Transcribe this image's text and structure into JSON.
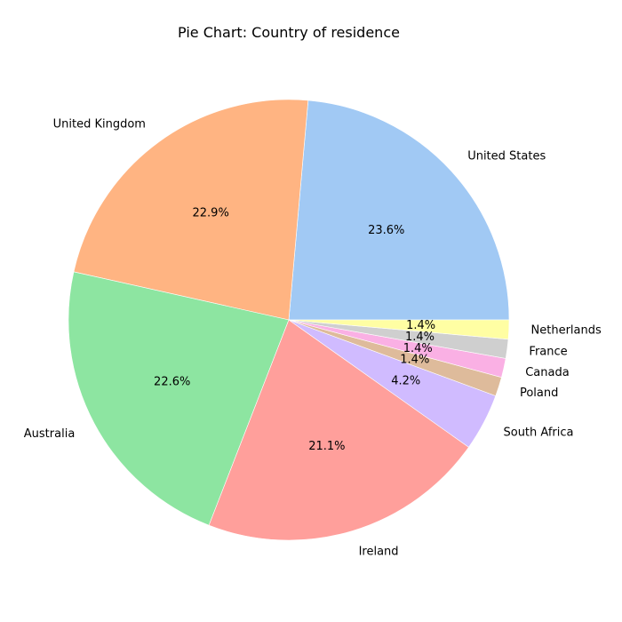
{
  "chart_data": {
    "type": "pie",
    "title": "Pie Chart: Country of residence",
    "slices": [
      {
        "label": "United States",
        "percent": 23.6,
        "percent_label": "23.6%",
        "color": "#a1c9f4"
      },
      {
        "label": "United Kingdom",
        "percent": 22.9,
        "percent_label": "22.9%",
        "color": "#ffb482"
      },
      {
        "label": "Australia",
        "percent": 22.6,
        "percent_label": "22.6%",
        "color": "#8de5a1"
      },
      {
        "label": "Ireland",
        "percent": 21.1,
        "percent_label": "21.1%",
        "color": "#ff9f9b"
      },
      {
        "label": "South Africa",
        "percent": 4.2,
        "percent_label": "4.2%",
        "color": "#d0bbff"
      },
      {
        "label": "Poland",
        "percent": 1.4,
        "percent_label": "1.4%",
        "color": "#debb9b"
      },
      {
        "label": "Canada",
        "percent": 1.4,
        "percent_label": "1.4%",
        "color": "#fab0e4"
      },
      {
        "label": "France",
        "percent": 1.4,
        "percent_label": "1.4%",
        "color": "#cfcfcf"
      },
      {
        "label": "Netherlands",
        "percent": 1.4,
        "percent_label": "1.4%",
        "color": "#fffea3"
      }
    ]
  }
}
